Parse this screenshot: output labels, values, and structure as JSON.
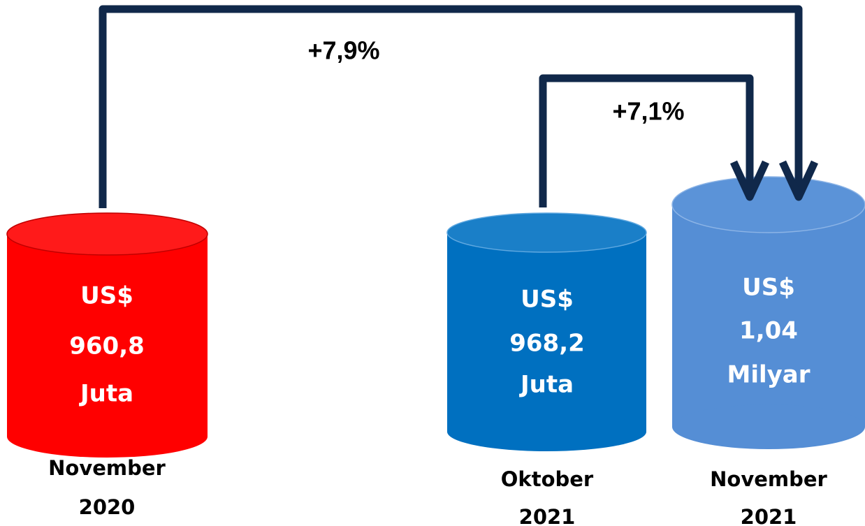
{
  "arrows": [
    {
      "label": "+7,9%"
    },
    {
      "label": "+7,1%"
    }
  ],
  "cylinders": [
    {
      "lines": [
        "US$",
        "960,8",
        "Juta"
      ],
      "caption": [
        "November",
        "2020"
      ]
    },
    {
      "lines": [
        "US$",
        "968,2",
        "Juta"
      ],
      "caption": [
        "Oktober",
        "2021"
      ]
    },
    {
      "lines": [
        "US$",
        "1,04",
        "Milyar"
      ],
      "caption": [
        "November",
        "2021"
      ]
    }
  ]
}
